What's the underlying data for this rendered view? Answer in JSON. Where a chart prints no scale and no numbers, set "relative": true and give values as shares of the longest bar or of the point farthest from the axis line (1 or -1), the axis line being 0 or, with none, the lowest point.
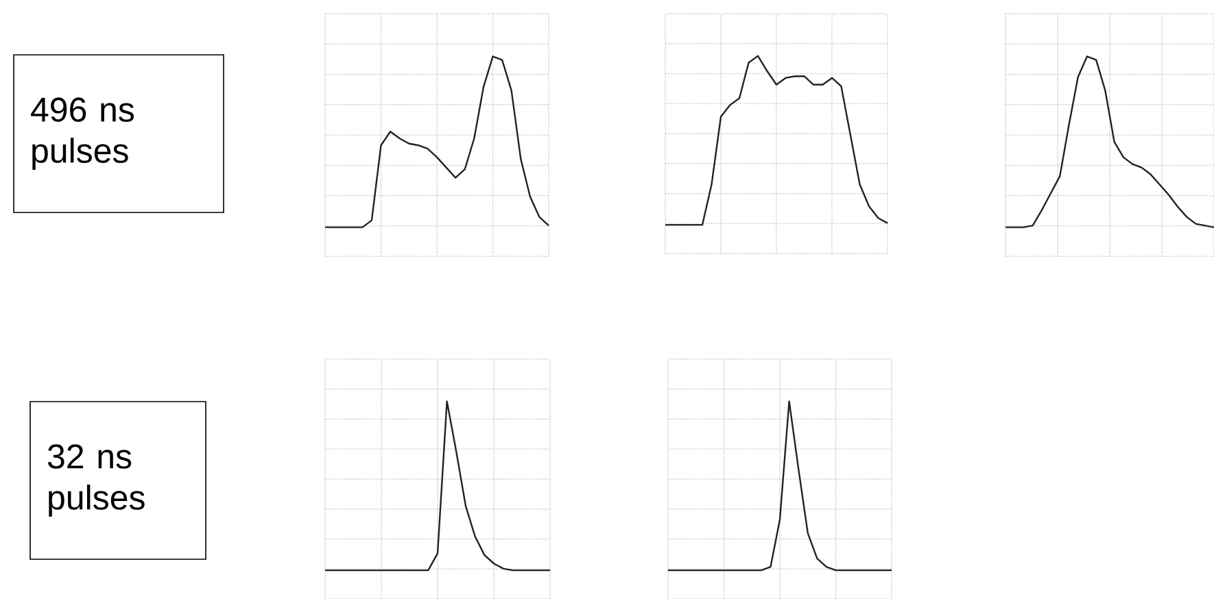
{
  "chart_data": [
    {
      "type": "other",
      "annotations": [
        "496 ns pulses"
      ]
    },
    {
      "type": "line",
      "relative": true,
      "grid": true,
      "categories": [
        null,
        null,
        null,
        null,
        null,
        null,
        null,
        null,
        null,
        null,
        null,
        null,
        null,
        null,
        null,
        null,
        null,
        null,
        null,
        null,
        null,
        null,
        null,
        null,
        null
      ],
      "series": [
        {
          "color": "#222222",
          "values": [
            0,
            0,
            0,
            0,
            0,
            0.04,
            0.48,
            0.56,
            0.52,
            0.49,
            0.48,
            0.46,
            0.41,
            0.35,
            0.29,
            0.34,
            0.52,
            0.82,
            1,
            0.98,
            0.8,
            0.4,
            0.18,
            0.06,
            0.01
          ]
        }
      ]
    },
    {
      "type": "line",
      "relative": true,
      "grid": true,
      "categories": [
        null,
        null,
        null,
        null,
        null,
        null,
        null,
        null,
        null,
        null,
        null,
        null,
        null,
        null,
        null,
        null,
        null,
        null,
        null,
        null,
        null,
        null,
        null,
        null,
        null
      ],
      "series": [
        {
          "color": "#222222",
          "values": [
            0,
            0,
            0,
            0,
            0,
            0.24,
            0.64,
            0.71,
            0.75,
            0.96,
            1,
            0.91,
            0.83,
            0.87,
            0.88,
            0.88,
            0.83,
            0.83,
            0.87,
            0.82,
            0.53,
            0.24,
            0.11,
            0.04,
            0.01
          ]
        }
      ]
    },
    {
      "type": "line",
      "relative": true,
      "grid": true,
      "categories": [
        null,
        null,
        null,
        null,
        null,
        null,
        null,
        null,
        null,
        null,
        null,
        null,
        null,
        null,
        null,
        null,
        null,
        null,
        null,
        null,
        null,
        null,
        null,
        null
      ],
      "series": [
        {
          "color": "#222222",
          "values": [
            0,
            0,
            0,
            0.01,
            0.1,
            0.2,
            0.3,
            0.6,
            0.88,
            1,
            0.98,
            0.8,
            0.5,
            0.41,
            0.37,
            0.35,
            0.31,
            0.25,
            0.19,
            0.12,
            0.06,
            0.02,
            0.01,
            0
          ]
        }
      ]
    },
    {
      "type": "other",
      "annotations": [
        "32 ns pulses"
      ]
    },
    {
      "type": "line",
      "relative": true,
      "grid": true,
      "categories": [
        null,
        null,
        null,
        null,
        null,
        null,
        null,
        null,
        null,
        null,
        null,
        null,
        null,
        null,
        null,
        null,
        null,
        null,
        null,
        null,
        null,
        null,
        null,
        null,
        null
      ],
      "series": [
        {
          "color": "#222222",
          "values": [
            0,
            0,
            0,
            0,
            0,
            0,
            0,
            0,
            0,
            0,
            0,
            0,
            0.1,
            1,
            0.7,
            0.38,
            0.2,
            0.09,
            0.04,
            0.01,
            0,
            0,
            0,
            0,
            0
          ]
        }
      ]
    },
    {
      "type": "line",
      "relative": true,
      "grid": true,
      "categories": [
        null,
        null,
        null,
        null,
        null,
        null,
        null,
        null,
        null,
        null,
        null,
        null,
        null,
        null,
        null,
        null,
        null,
        null,
        null,
        null,
        null,
        null,
        null,
        null,
        null
      ],
      "series": [
        {
          "color": "#222222",
          "values": [
            0,
            0,
            0,
            0,
            0,
            0,
            0,
            0,
            0,
            0,
            0,
            0.02,
            0.3,
            1,
            0.6,
            0.22,
            0.07,
            0.02,
            0,
            0,
            0,
            0,
            0,
            0,
            0
          ]
        }
      ]
    }
  ]
}
